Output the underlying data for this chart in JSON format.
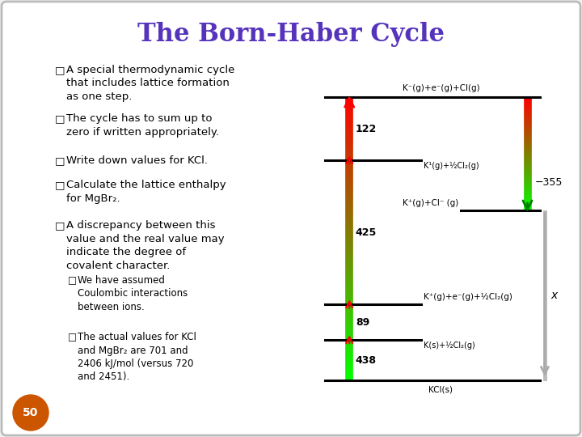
{
  "title": "The Born-Haber Cycle",
  "title_color": "#5533bb",
  "bullet_text": [
    [
      "A special thermodynamic cycle\nthat includes lattice formation\nas one step.",
      false
    ],
    [
      "The cycle has to sum up to\nzero if written appropriately.",
      false
    ],
    [
      "Write down values for KCl.",
      false
    ],
    [
      "Calculate the lattice enthalpy\nfor MgBr₂.",
      false
    ],
    [
      "A discrepancy between this\nvalue and the real value may\nindicate the degree of\ncovalent character.",
      false
    ],
    [
      "We have assumed\nCoulombic interactions\nbetween ions.",
      true
    ],
    [
      "The actual values for KCl\nand MgBr₂ are 701 and\n2406 kJ/mol (versus 720\nand 2451).",
      true
    ]
  ],
  "page_num": "50",
  "diagram": {
    "label_KCl_s": "KCl(s)",
    "label_K_half_Cl2": "K(s)+½Cl₂(g)",
    "label_K1_half_Cl2": "K¹(g)+½Cl₂(g)",
    "label_Kp_Cl": "K⁺(g)+Cl⁻ (g)",
    "label_Kp_ep_half_Cl2": "K⁺(g)+e⁻(g)+½Cl₂(g)",
    "label_Km_ep_Cl": "K⁻(g)+e⁻(g)+Cl(g)",
    "arrow_438": "438",
    "arrow_89": "89",
    "arrow_425": "425",
    "arrow_122": "122",
    "arrow_355": "−355",
    "arrow_x": "x"
  }
}
